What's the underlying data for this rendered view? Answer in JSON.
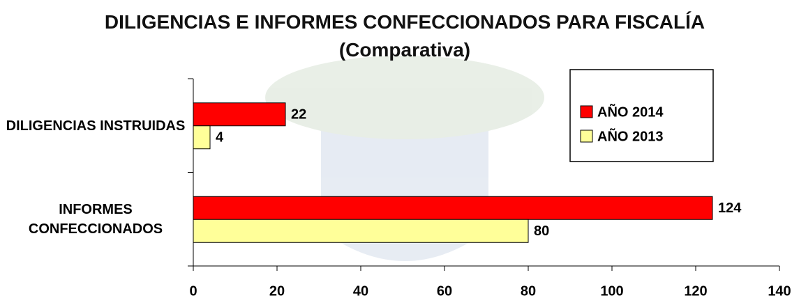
{
  "chart_data": {
    "type": "barh",
    "title": "DILIGENCIAS E INFORMES CONFECCIONADOS PARA FISCALÍA (Comparativa)",
    "categories": [
      "DILIGENCIAS INSTRUIDAS",
      "INFORMES CONFECCIONADOS"
    ],
    "series": [
      {
        "name": "AÑO 2014",
        "color": "#ff0000",
        "values": [
          22,
          124
        ]
      },
      {
        "name": "AÑO 2013",
        "color": "#ffff99",
        "values": [
          4,
          80
        ]
      }
    ],
    "xlim": [
      0,
      140
    ],
    "xticks": [
      0,
      20,
      40,
      60,
      80,
      100,
      120,
      140
    ],
    "legend": "upper right"
  }
}
